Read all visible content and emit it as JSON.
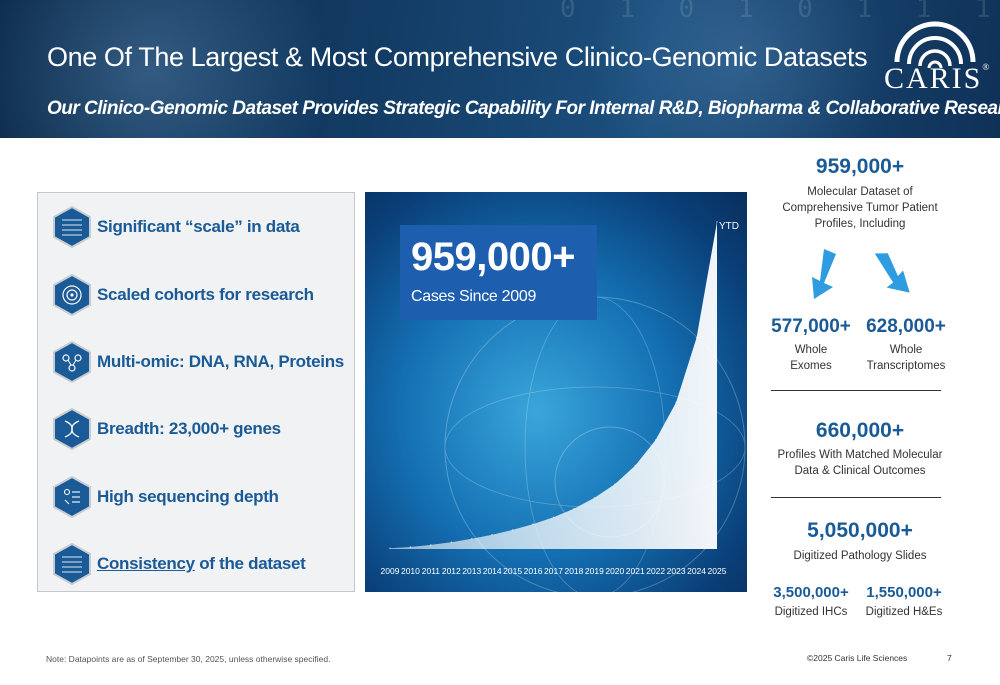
{
  "header": {
    "title": "One Of The Largest & Most Comprehensive Clinico-Genomic Datasets",
    "subtitle": "Our Clinico-Genomic Dataset Provides Strategic Capability For Internal R&D, Biopharma & Collaborative Research",
    "logo_text": "CARIS",
    "logo_mark": "®"
  },
  "features": [
    {
      "label": "Significant “scale” in data",
      "icon": "data-grid-icon"
    },
    {
      "label": "Scaled cohorts for research",
      "icon": "target-icon"
    },
    {
      "label": "Multi-omic: DNA, RNA, Proteins",
      "icon": "molecule-icon"
    },
    {
      "label": "Breadth: 23,000+ genes",
      "icon": "dna-icon"
    },
    {
      "label": "High sequencing depth",
      "icon": "layers-icon"
    },
    {
      "label_underlined": "Consistency",
      "label_rest": " of the dataset",
      "icon": "data-grid-icon"
    }
  ],
  "chart_data": {
    "type": "area",
    "x": [
      "2009",
      "2010",
      "2011",
      "2012",
      "2013",
      "2014",
      "2015",
      "2016",
      "2017",
      "2018",
      "2019",
      "2020",
      "2021",
      "2022",
      "2023",
      "2024",
      "2025"
    ],
    "values": [
      2000,
      6000,
      12000,
      20000,
      30000,
      42000,
      56000,
      73000,
      93000,
      118000,
      150000,
      190000,
      245000,
      320000,
      430000,
      620000,
      959000
    ],
    "annotation": "YTD",
    "headline_value": "959,000+",
    "headline_label": "Cases Since 2009"
  },
  "stats": {
    "molecular": {
      "value": "959,000+",
      "label_lines": [
        "Molecular Dataset of",
        "Comprehensive Tumor Patient",
        "Profiles, Including"
      ]
    },
    "exomes": {
      "value": "577,000+",
      "label_lines": [
        "Whole",
        "Exomes"
      ]
    },
    "transcriptomes": {
      "value": "628,000+",
      "label_lines": [
        "Whole",
        "Transcriptomes"
      ]
    },
    "matched": {
      "value": "660,000+",
      "label_lines": [
        "Profiles With Matched Molecular",
        "Data & Clinical Outcomes"
      ]
    },
    "pathology": {
      "value": "5,050,000+",
      "label": "Digitized Pathology Slides"
    },
    "ihc": {
      "value": "3,500,000+",
      "label": "Digitized IHCs"
    },
    "he": {
      "value": "1,550,000+",
      "label": "Digitized H&Es"
    }
  },
  "footer": {
    "note": "Note:  Datapoints are as of September 30, 2025, unless otherwise specified.",
    "copyright": "©2025 Caris Life Sciences",
    "page": "7"
  },
  "colors": {
    "brand_blue": "#1a5a96",
    "banner_dark": "#0b2a4a",
    "box_blue": "#1d5fae",
    "arrow_blue": "#2f9be0"
  }
}
